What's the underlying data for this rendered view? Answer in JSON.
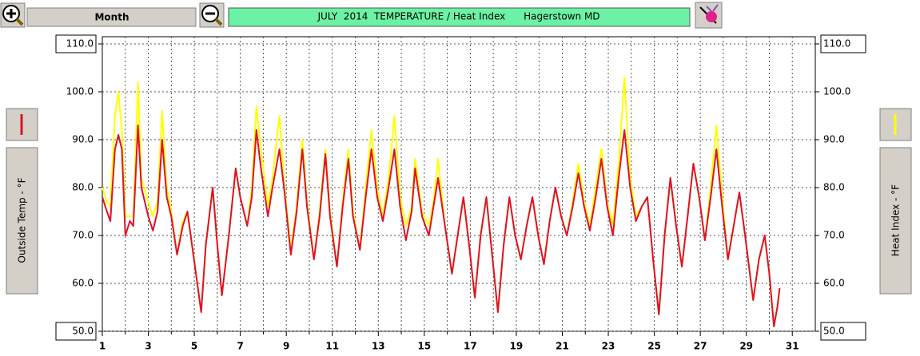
{
  "ui": {
    "period": "Month"
  },
  "chart_data": {
    "type": "line",
    "title": "JULY  2014  TEMPERATURE / Heat Index      Hagerstown MD",
    "ylabel": "Outside Temp - °F",
    "y2label": "Heat Index - °F",
    "x": [
      1.0,
      1.2,
      1.35,
      1.55,
      1.7,
      1.85,
      2.0,
      2.2,
      2.35,
      2.55,
      2.7,
      3.0,
      3.2,
      3.4,
      3.6,
      3.8,
      4.0,
      4.25,
      4.5,
      4.7,
      4.9,
      5.1,
      5.3,
      5.5,
      5.8,
      6.0,
      6.2,
      6.5,
      6.8,
      7.0,
      7.3,
      7.5,
      7.7,
      7.9,
      8.2,
      8.4,
      8.7,
      8.9,
      9.2,
      9.45,
      9.7,
      9.9,
      10.2,
      10.45,
      10.7,
      10.9,
      11.2,
      11.45,
      11.7,
      11.9,
      12.2,
      12.45,
      12.7,
      12.95,
      13.2,
      13.45,
      13.7,
      13.95,
      14.2,
      14.45,
      14.6,
      14.9,
      15.2,
      15.4,
      15.6,
      15.9,
      16.2,
      16.45,
      16.7,
      16.95,
      17.2,
      17.45,
      17.7,
      17.95,
      18.2,
      18.45,
      18.7,
      18.95,
      19.2,
      19.45,
      19.7,
      19.95,
      20.2,
      20.45,
      20.7,
      20.95,
      21.2,
      21.45,
      21.7,
      21.95,
      22.2,
      22.45,
      22.7,
      22.95,
      23.2,
      23.45,
      23.7,
      23.95,
      24.2,
      24.45,
      24.7,
      24.95,
      25.2,
      25.45,
      25.7,
      25.95,
      26.2,
      26.45,
      26.7,
      26.95,
      27.2,
      27.45,
      27.7,
      27.95,
      28.2,
      28.45,
      28.7,
      28.95,
      29.3,
      29.55,
      29.8,
      30.0,
      30.2,
      30.35,
      30.45
    ],
    "series": [
      {
        "name": "Outside Temp",
        "color": "#e0102a",
        "axis": "y",
        "values": [
          78,
          75,
          73,
          88,
          91,
          88,
          70,
          73,
          72,
          93,
          80,
          74,
          71,
          75,
          90,
          78,
          74,
          66,
          72,
          75,
          68,
          61,
          54,
          68,
          80,
          68,
          57.5,
          70,
          84,
          78,
          72,
          78,
          92,
          84,
          74,
          80,
          88,
          80,
          66,
          75,
          88,
          76,
          65,
          74,
          87,
          74,
          63.5,
          76,
          86,
          74,
          67,
          78,
          88,
          78,
          73,
          80,
          88,
          76,
          69,
          75,
          84,
          74,
          70,
          76,
          82,
          72,
          62,
          70,
          78,
          68,
          57,
          70,
          78,
          66,
          54,
          68,
          78,
          70,
          65,
          72,
          78,
          70,
          64,
          73,
          80,
          74,
          70,
          76,
          83,
          76,
          71,
          78,
          86,
          76,
          70,
          82,
          92,
          80,
          73,
          76,
          78,
          65,
          53.5,
          70,
          82,
          72,
          63.5,
          74,
          85,
          78,
          69,
          78,
          88,
          76,
          65,
          72,
          79,
          70,
          56.5,
          65,
          70,
          62,
          51,
          55,
          59
        ]
      },
      {
        "name": "Heat Index",
        "color": "#ffff00",
        "axis": "y2",
        "values": [
          80,
          77,
          76,
          95,
          100,
          92,
          74,
          74,
          74,
          102,
          82,
          77,
          74,
          77,
          96,
          80,
          75,
          66,
          73,
          75,
          68,
          61,
          54,
          68,
          80,
          68,
          57.5,
          70,
          84,
          78,
          72,
          80,
          97,
          88,
          76,
          82,
          95,
          81,
          67,
          76,
          90,
          77,
          65,
          75,
          88,
          75,
          63.5,
          77,
          88,
          75,
          67,
          80,
          92,
          80,
          74,
          82,
          95,
          78,
          72,
          76,
          86,
          75,
          72,
          77,
          86,
          72,
          62,
          70,
          78,
          68,
          57,
          70,
          78,
          66,
          54,
          68,
          78,
          70,
          65,
          72,
          78,
          70,
          64,
          73,
          80,
          74,
          70,
          77,
          85,
          77,
          72,
          80,
          88,
          77,
          72,
          85,
          103,
          82,
          74,
          76,
          78,
          65,
          53.5,
          70,
          82,
          72,
          63.5,
          74,
          85,
          78,
          69,
          80,
          93,
          78,
          65,
          72,
          79,
          70,
          56.5,
          65,
          70,
          62,
          51,
          55,
          59
        ]
      }
    ],
    "xlim": [
      1,
      32
    ],
    "xticks": [
      1,
      3,
      5,
      7,
      9,
      11,
      13,
      15,
      17,
      19,
      21,
      23,
      25,
      27,
      29,
      31
    ],
    "xminorticks": [
      2,
      4,
      6,
      8,
      10,
      12,
      14,
      16,
      18,
      20,
      22,
      24,
      26,
      28,
      30
    ],
    "ylim": [
      50,
      111.5
    ],
    "yticks": [
      {
        "value": 50,
        "label": "50.0"
      },
      {
        "value": 60,
        "label": "60.0"
      },
      {
        "value": 70,
        "label": "70.0"
      },
      {
        "value": 80,
        "label": "80.0"
      },
      {
        "value": 90,
        "label": "90.0"
      },
      {
        "value": 100,
        "label": "100.0"
      },
      {
        "value": 110,
        "label": "110.0"
      }
    ],
    "y2lim": [
      50,
      111.5
    ],
    "y2ticks": [
      {
        "value": 50,
        "label": "50.0"
      },
      {
        "value": 60,
        "label": "60.0"
      },
      {
        "value": 70,
        "label": "70.0"
      },
      {
        "value": 80,
        "label": "80.0"
      },
      {
        "value": 90,
        "label": "90.0"
      },
      {
        "value": 100,
        "label": "100.0"
      },
      {
        "value": 110,
        "label": "110.0"
      }
    ],
    "grid": true
  }
}
